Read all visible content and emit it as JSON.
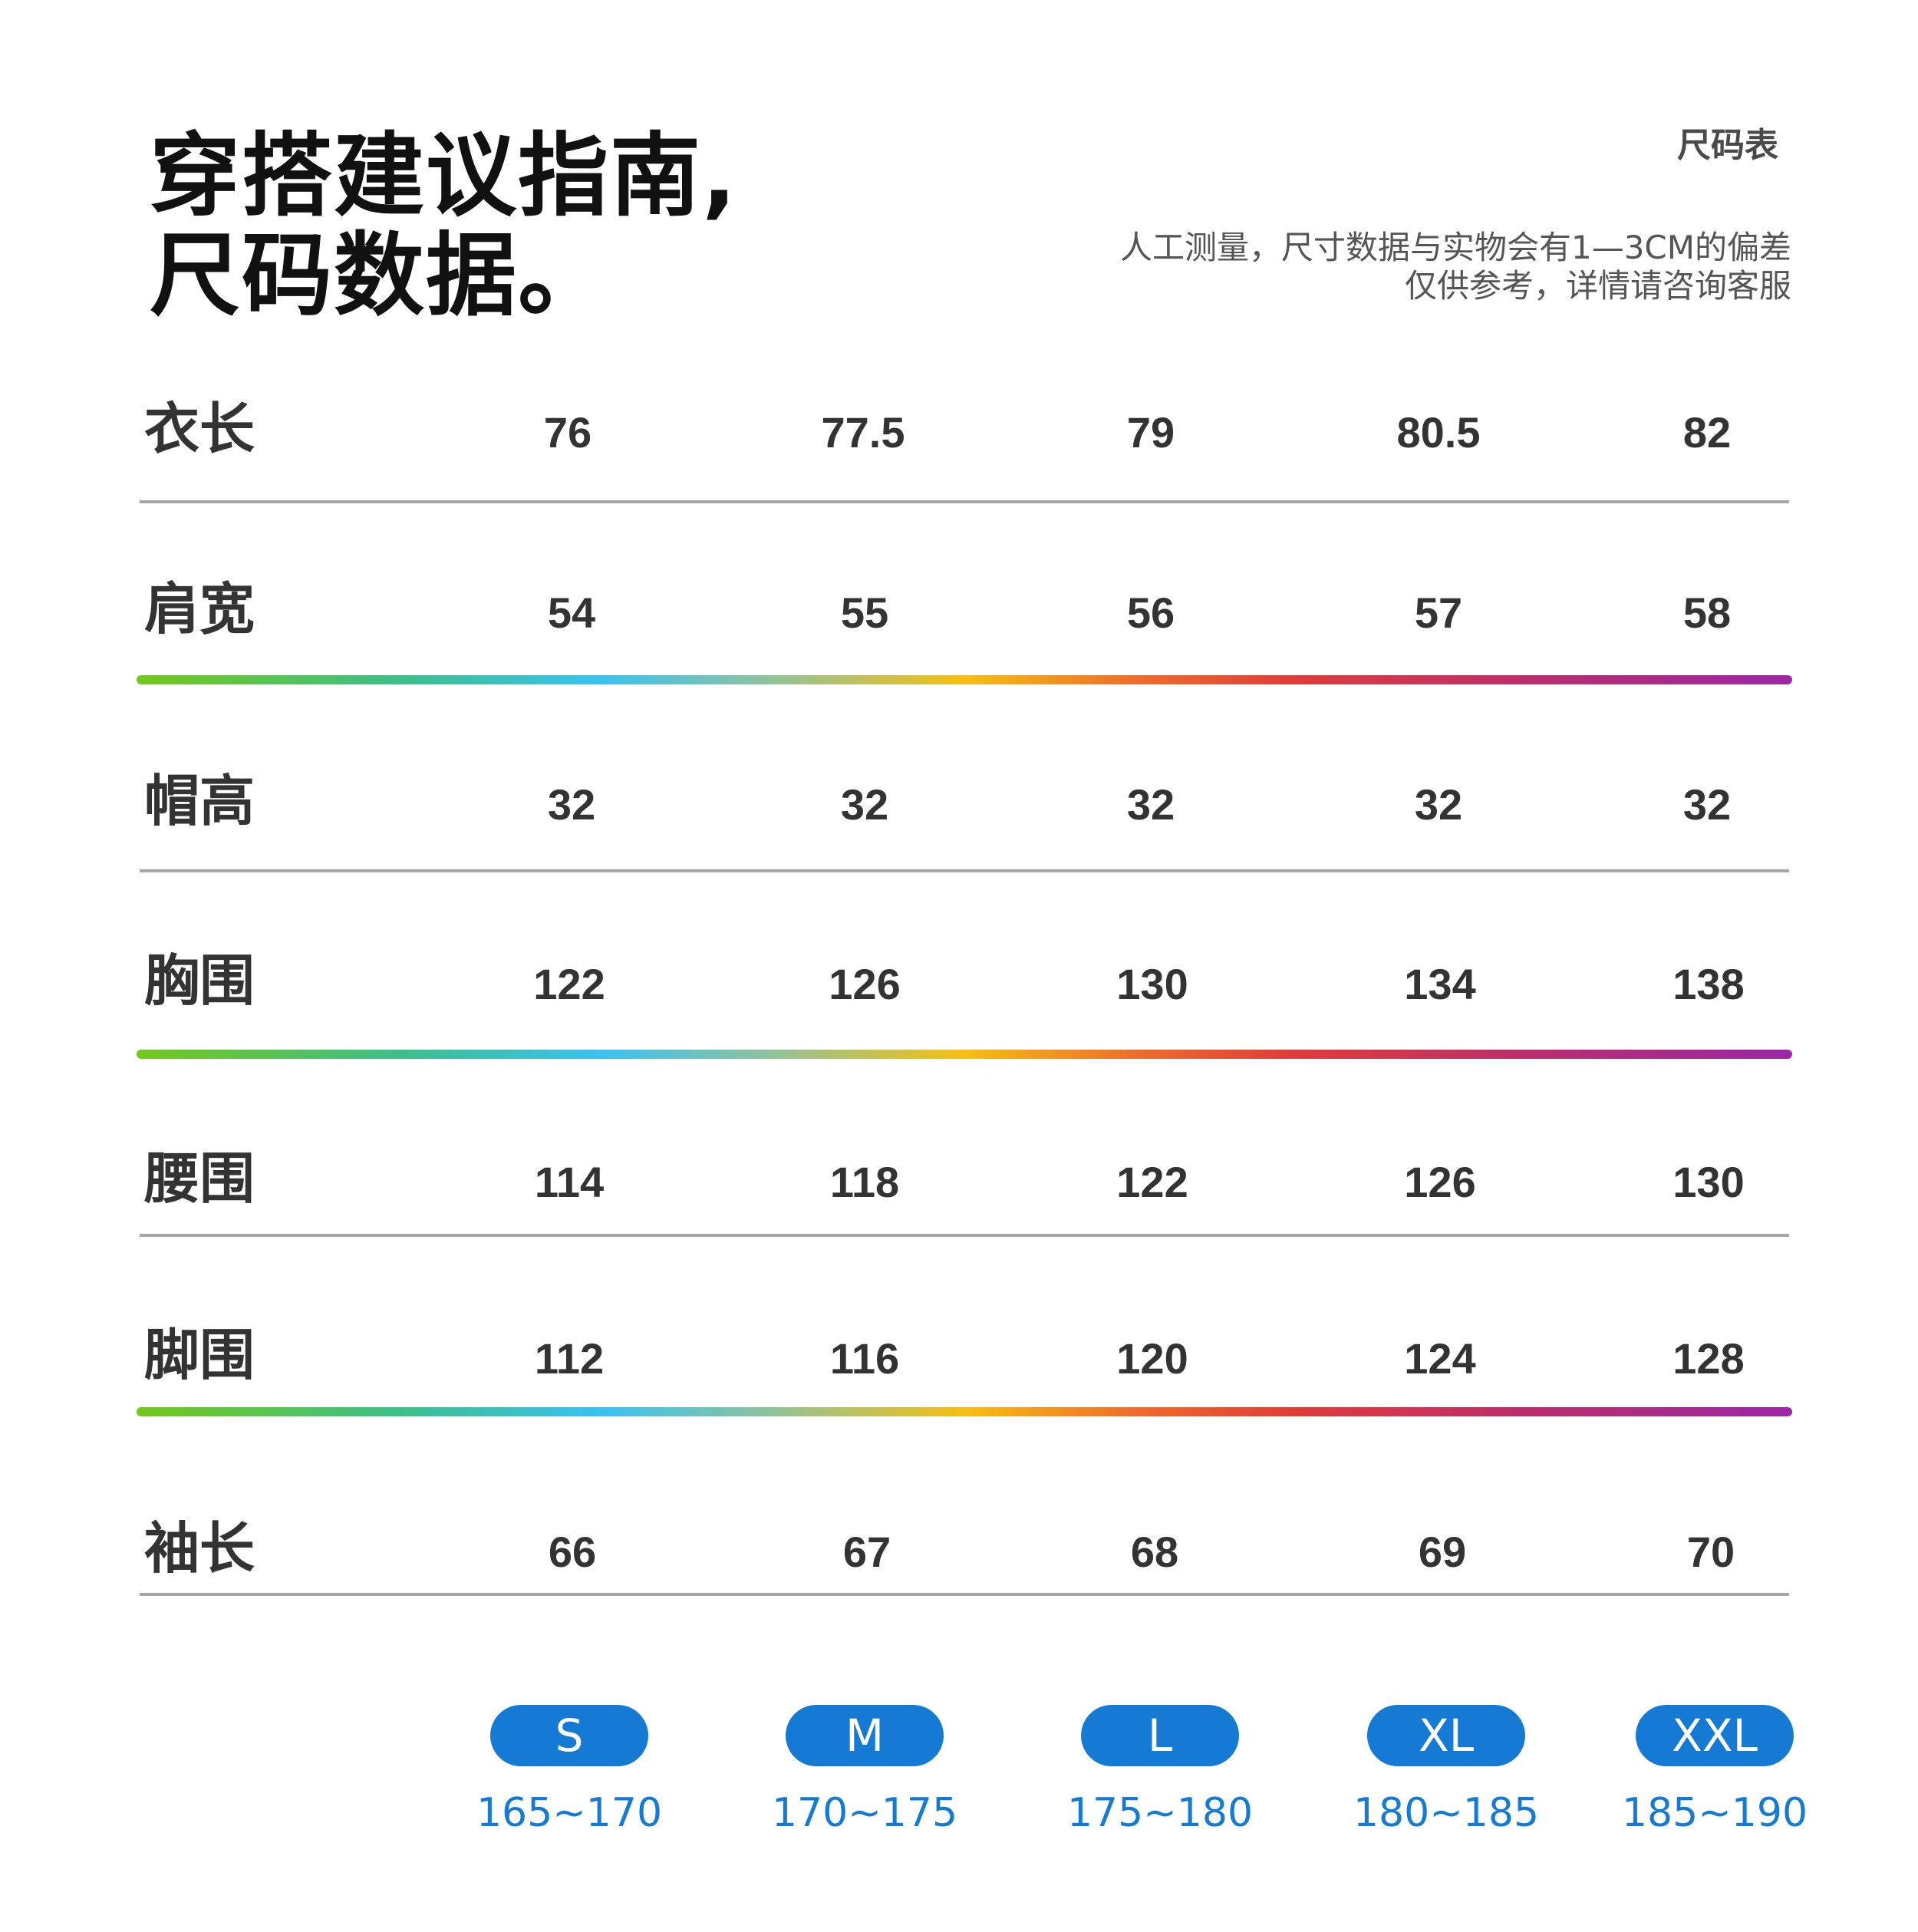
{
  "header": {
    "title_line1": "穿搭建议指南,",
    "title_line2": "尺码数据。",
    "label": "尺码表",
    "note_line1": "人工测量，尺寸数据与实物会有1—3CM的偏差",
    "note_line2": "仅供参考，详情请咨询客服"
  },
  "table": {
    "rows": [
      {
        "label": "衣长",
        "values": [
          "76",
          "77.5",
          "79",
          "80.5",
          "82"
        ]
      },
      {
        "label": "肩宽",
        "values": [
          "54",
          "55",
          "56",
          "57",
          "58"
        ]
      },
      {
        "label": "帽高",
        "values": [
          "32",
          "32",
          "32",
          "32",
          "32"
        ]
      },
      {
        "label": "胸围",
        "values": [
          "122",
          "126",
          "130",
          "134",
          "138"
        ]
      },
      {
        "label": "腰围",
        "values": [
          "114",
          "118",
          "122",
          "126",
          "130"
        ]
      },
      {
        "label": "脚围",
        "values": [
          "112",
          "116",
          "120",
          "124",
          "128"
        ]
      },
      {
        "label": "袖长",
        "values": [
          "66",
          "67",
          "68",
          "69",
          "70"
        ]
      }
    ]
  },
  "sizes": [
    {
      "size": "S",
      "height": "165~170"
    },
    {
      "size": "M",
      "height": "170~175"
    },
    {
      "size": "L",
      "height": "175~180"
    },
    {
      "size": "XL",
      "height": "180~185"
    },
    {
      "size": "XXL",
      "height": "185~190"
    }
  ],
  "colors": {
    "accent_blue": "#157ad3",
    "gradient": [
      "#74c81b",
      "#3ac2f2",
      "#f6bf13",
      "#df3c3a",
      "#9b27a7"
    ]
  }
}
